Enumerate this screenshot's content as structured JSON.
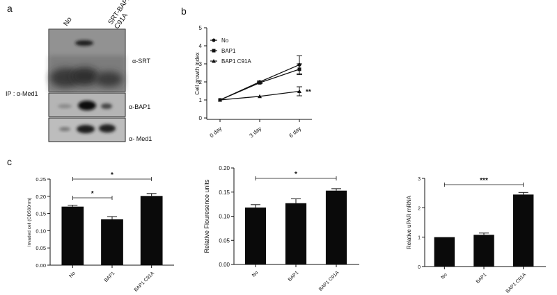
{
  "panels": {
    "a": "a",
    "b": "b",
    "c": "c"
  },
  "western_blot": {
    "lane_labels": [
      "No",
      "SRT-BAP1\nC91A"
    ],
    "ip_label": "IP : α-Med1",
    "band_labels": [
      "α-SRT",
      "α-BAP1",
      "α- Med1"
    ]
  },
  "chart_data": [
    {
      "id": "b",
      "type": "line",
      "title": "",
      "xlabel": "",
      "ylabel": "Cell growth index",
      "categories": [
        "0 day",
        "3 day",
        "6 day"
      ],
      "ylim": [
        0,
        5
      ],
      "yticks": [
        0,
        1,
        2,
        3,
        4,
        5
      ],
      "series": [
        {
          "name": "No",
          "marker": "circle",
          "values": [
            1.0,
            2.0,
            2.95
          ],
          "errors": [
            0.02,
            0.05,
            0.5
          ]
        },
        {
          "name": "BAP1",
          "marker": "square",
          "values": [
            1.0,
            1.95,
            2.7
          ],
          "errors": [
            0.02,
            0.05,
            0.3
          ]
        },
        {
          "name": "BAP1 C91A",
          "marker": "triangle",
          "values": [
            1.0,
            1.2,
            1.48
          ],
          "errors": [
            0.02,
            0.03,
            0.25
          ]
        }
      ],
      "annotations": [
        "**"
      ]
    },
    {
      "id": "c1",
      "type": "bar",
      "title": "",
      "ylabel": "Invaded cell (OD560nm)",
      "categories": [
        "No",
        "BAP1",
        "BAP1 C91A"
      ],
      "values": [
        0.17,
        0.133,
        0.201
      ],
      "errors": [
        0.004,
        0.008,
        0.007
      ],
      "ylim": [
        0,
        0.25
      ],
      "yticks": [
        0.0,
        0.05,
        0.1,
        0.15,
        0.2,
        0.25
      ],
      "tick_labels": [
        "0.00",
        "0.05",
        "0.10",
        "0.15",
        "0.20",
        "0.25"
      ],
      "significance": [
        {
          "from": 0,
          "to": 2,
          "label": "*"
        },
        {
          "from": 0,
          "to": 1,
          "label": "*"
        }
      ]
    },
    {
      "id": "c2",
      "type": "bar",
      "title": "",
      "ylabel": "Relative Flouresence units",
      "categories": [
        "No",
        "BAP1",
        "BAP1 C91A"
      ],
      "values": [
        0.118,
        0.127,
        0.153
      ],
      "errors": [
        0.006,
        0.009,
        0.004
      ],
      "ylim": [
        0,
        0.2
      ],
      "yticks": [
        0.0,
        0.05,
        0.1,
        0.15,
        0.2
      ],
      "tick_labels": [
        "0.00",
        "0.05",
        "0.10",
        "0.15",
        "0.20"
      ],
      "significance": [
        {
          "from": 0,
          "to": 2,
          "label": "*"
        }
      ]
    },
    {
      "id": "c3",
      "type": "bar",
      "title": "",
      "ylabel": "Relative uPAR mRNA",
      "categories": [
        "No",
        "BAP1",
        "BAP1 C91A"
      ],
      "values": [
        1.0,
        1.08,
        2.45
      ],
      "errors": [
        0.0,
        0.06,
        0.07
      ],
      "ylim": [
        0,
        3
      ],
      "yticks": [
        0,
        1,
        2,
        3
      ],
      "tick_labels": [
        "0",
        "1",
        "2",
        "3"
      ],
      "significance": [
        {
          "from": 0,
          "to": 2,
          "label": "***"
        }
      ]
    }
  ]
}
